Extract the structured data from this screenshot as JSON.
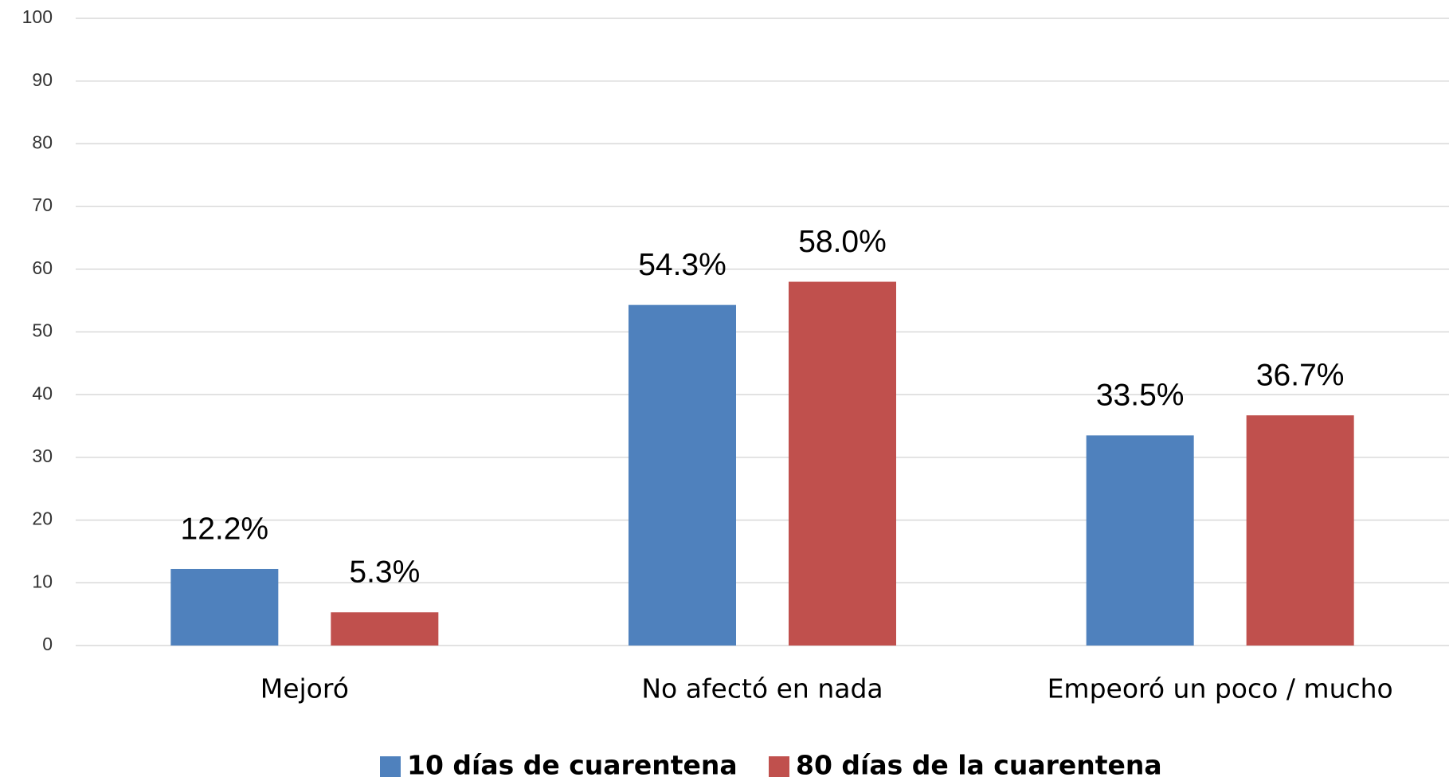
{
  "chart_data": {
    "type": "bar",
    "categories": [
      "Mejoró",
      "No afectó en nada",
      "Empeoró un poco / mucho"
    ],
    "series": [
      {
        "name": "10 días de cuarentena",
        "color": "#4f81bd",
        "values": [
          12.2,
          54.3,
          33.5
        ],
        "value_labels": [
          "12.2%",
          "54.3%",
          "33.5%"
        ]
      },
      {
        "name": "80 días de la cuarentena",
        "color": "#c0504d",
        "values": [
          5.3,
          58.0,
          36.7
        ],
        "value_labels": [
          "5.3%",
          "58.0%",
          "36.7%"
        ]
      }
    ],
    "ylim": [
      0,
      100
    ],
    "yticks": [
      0,
      10,
      20,
      30,
      40,
      50,
      60,
      70,
      80,
      90,
      100
    ],
    "grid": true,
    "legend": "bottom"
  }
}
